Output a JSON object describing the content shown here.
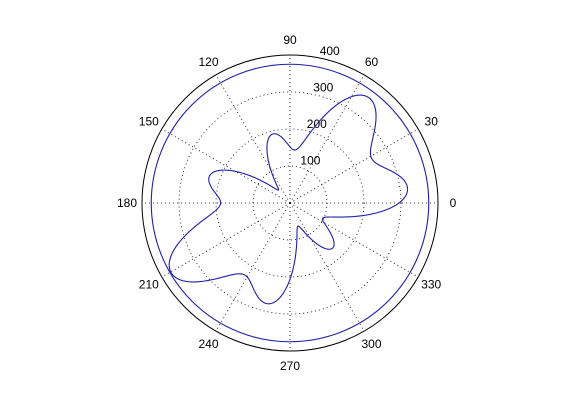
{
  "chart_data": {
    "type": "polar-line",
    "title": "",
    "angle_unit": "degrees",
    "angle_ticks": [
      0,
      30,
      60,
      90,
      120,
      150,
      180,
      210,
      240,
      270,
      300,
      330
    ],
    "angle_tick_labels": [
      "0",
      "30",
      "60",
      "90",
      "120",
      "150",
      "180",
      "210",
      "240",
      "270",
      "300",
      "330"
    ],
    "radial_range": [
      0,
      400
    ],
    "radial_ticks": [
      100,
      200,
      300,
      400
    ],
    "radial_tick_labels": [
      "100",
      "200",
      "300",
      "400"
    ],
    "radial_label_angle": 80,
    "grid": true,
    "series": [
      {
        "color": "#1f1fa8",
        "description": "closed rose-like curve with two interleaved three-lobe patterns and an outer ring near r=375",
        "model": {
          "base": 210,
          "terms": [
            {
              "amplitude": 105,
              "frequency": 2,
              "phase": 0.3
            },
            {
              "amplitude": 60,
              "frequency": 7,
              "phase": 1.1
            }
          ],
          "theta_range": [
            0,
            360
          ]
        }
      }
    ]
  }
}
